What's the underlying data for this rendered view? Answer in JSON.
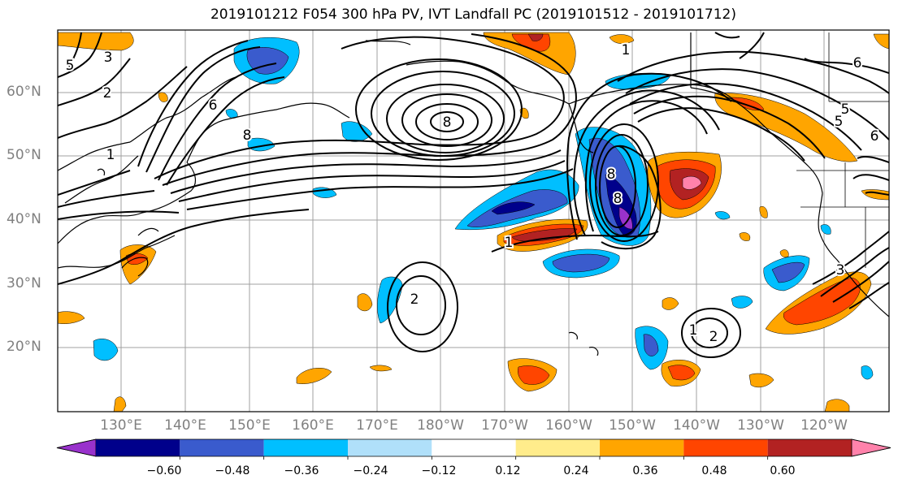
{
  "title": "2019101212 F054 300 hPa PV, IVT Landfall PC (2019101512 - 2019101712)",
  "lat_labels": [
    "60°N",
    "50°N",
    "40°N",
    "30°N",
    "20°N"
  ],
  "lon_labels": [
    "130°E",
    "140°E",
    "150°E",
    "160°E",
    "170°E",
    "180°W",
    "170°W",
    "160°W",
    "150°W",
    "140°W",
    "130°W",
    "120°W"
  ],
  "contour_labels": [
    "8",
    "8",
    "8",
    "8",
    "6",
    "6",
    "6",
    "5",
    "5",
    "5",
    "3",
    "3",
    "2",
    "2",
    "2",
    "1",
    "1",
    "1",
    "1"
  ],
  "colorbar": {
    "ticks": [
      "−0.60",
      "−0.48",
      "−0.36",
      "−0.24",
      "−0.12",
      "0.12",
      "0.24",
      "0.36",
      "0.48",
      "0.60"
    ],
    "colors": [
      "#9932cc",
      "#00008b",
      "#3a5bcd",
      "#00bfff",
      "#b0e0fa",
      "#ffffff",
      "#ffec8b",
      "#ffa500",
      "#ff4500",
      "#b22222",
      "#ff82ab"
    ]
  }
}
